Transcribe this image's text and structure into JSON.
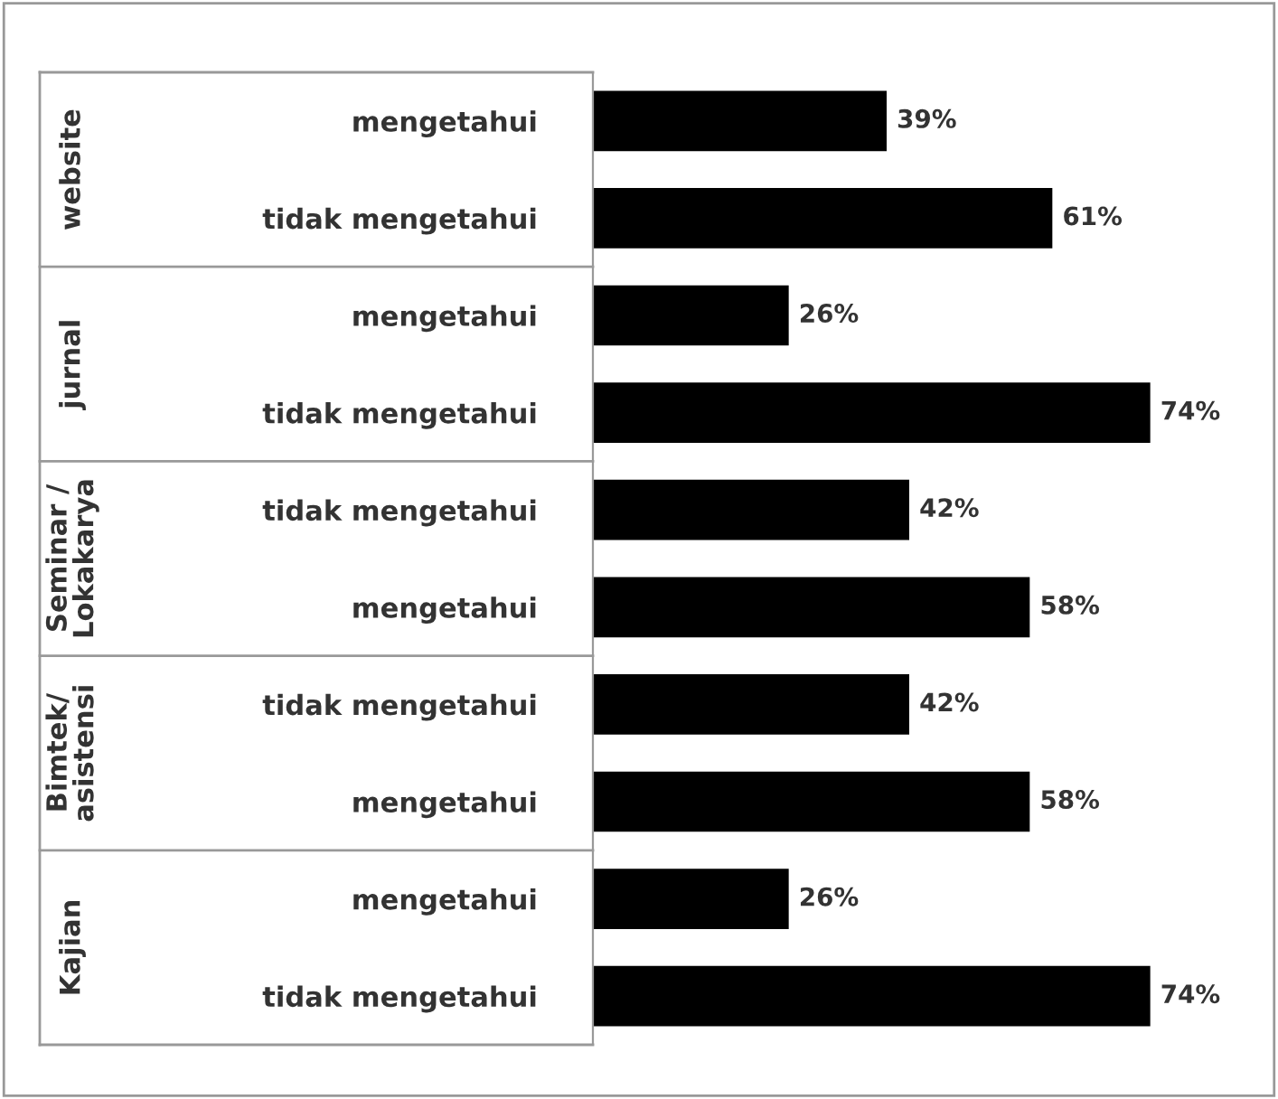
{
  "chart_data": {
    "type": "bar",
    "orientation": "horizontal",
    "categories": [
      "mengetahui",
      "tidak mengetahui",
      "mengetahui",
      "tidak mengetahui",
      "tidak mengetahui",
      "mengetahui",
      "tidak mengetahui",
      "mengetahui",
      "mengetahui",
      "tidak mengetahui"
    ],
    "values": [
      39,
      61,
      26,
      74,
      42,
      58,
      42,
      58,
      26,
      74
    ],
    "value_labels": [
      "39%",
      "61%",
      "26%",
      "74%",
      "42%",
      "58%",
      "42%",
      "58%",
      "26%",
      "74%"
    ],
    "color": "#000000",
    "annotations": [
      "website",
      "jurnal",
      "Seminar /\nLokakarya",
      "Bimtek/\nasistensi",
      "Kajian"
    ]
  }
}
